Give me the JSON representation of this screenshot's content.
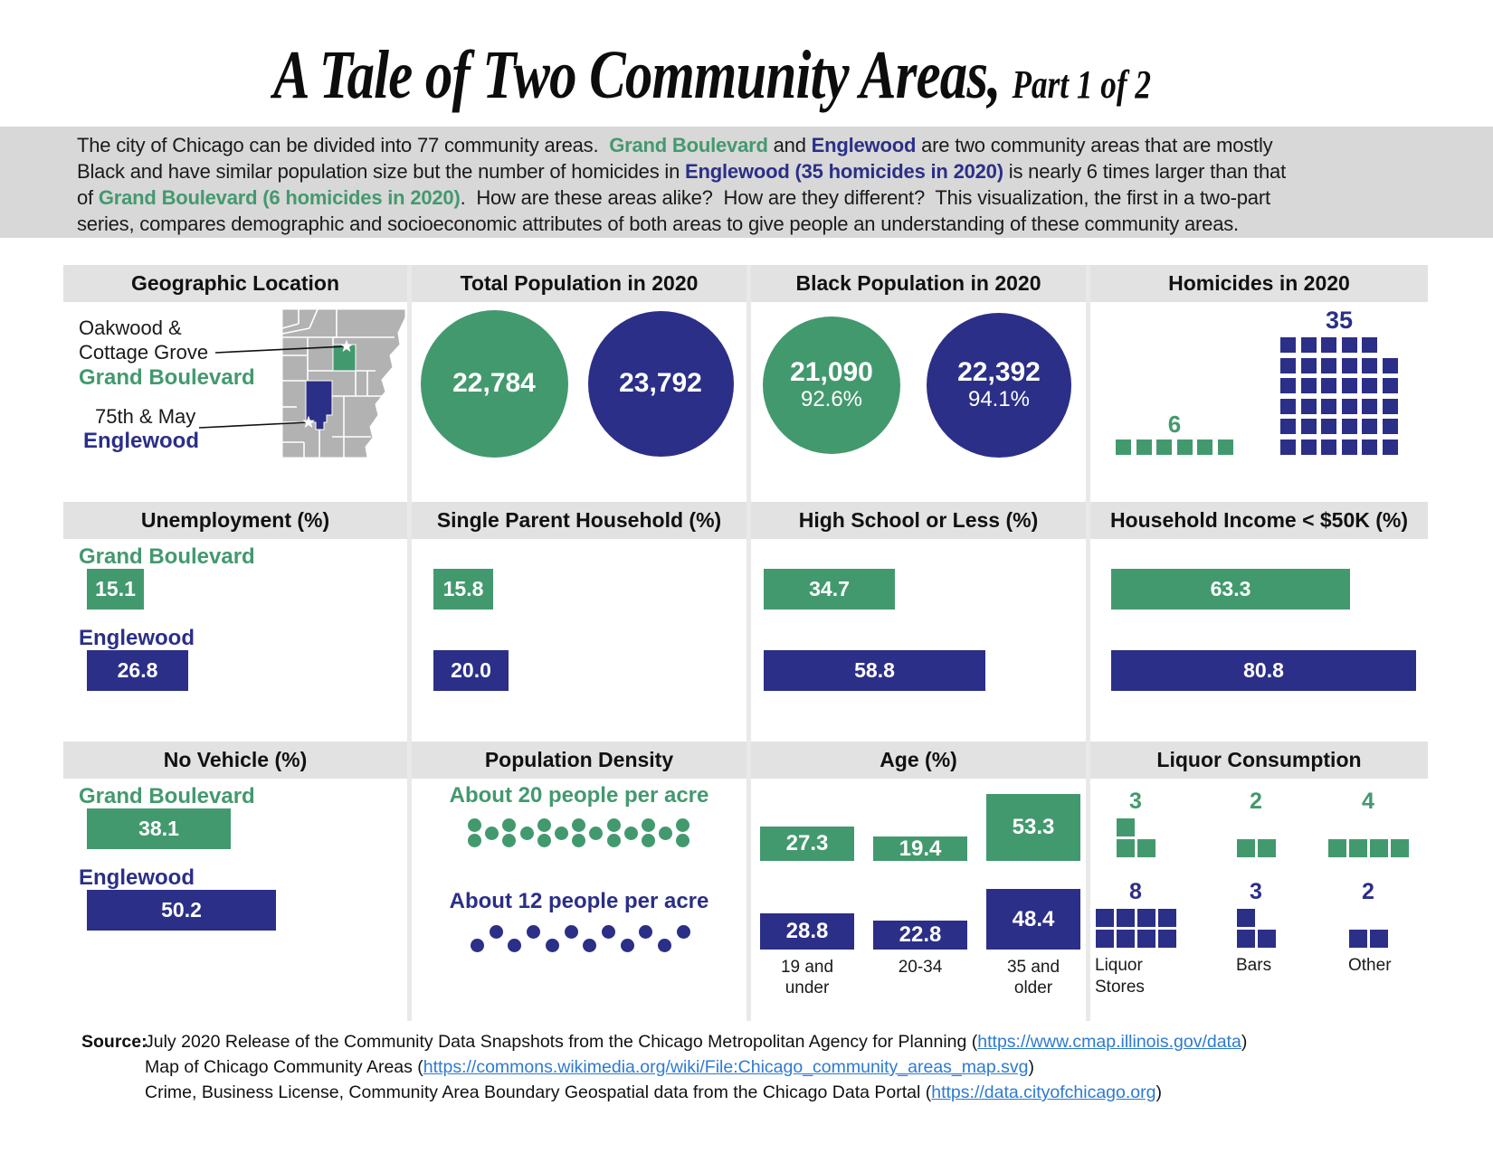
{
  "title": {
    "main": "A Tale of Two Community Areas,",
    "part": "Part 1 of 2"
  },
  "colors": {
    "green": "#43996E",
    "blue": "#2B2F87",
    "map_gray": "#B2B2B2",
    "strip_gray": "#E2E2E2",
    "divider_gray": "#E9E9E9",
    "band_gray": "#D8D8D8",
    "link_blue": "#2E7AD1"
  },
  "intro": {
    "lines": [
      [
        {
          "t": "The city of Chicago can be divided into 77 community areas.  ",
          "c": "n"
        },
        {
          "t": "Grand Boulevard",
          "c": "g"
        },
        {
          "t": " and ",
          "c": "n"
        },
        {
          "t": "Englewood",
          "c": "b"
        },
        {
          "t": " are two community areas that are mostly",
          "c": "n"
        }
      ],
      [
        {
          "t": "Black and have similar population size but the number of homicides in ",
          "c": "n"
        },
        {
          "t": "Englewood (35 homicides in 2020)",
          "c": "b"
        },
        {
          "t": " is nearly 6 times larger than that",
          "c": "n"
        }
      ],
      [
        {
          "t": "of ",
          "c": "n"
        },
        {
          "t": "Grand Boulevard (6 homicides in 2020)",
          "c": "g"
        },
        {
          "t": ".  How are these areas alike?  How are they different?  This visualization, the first in a two-part",
          "c": "n"
        }
      ],
      [
        {
          "t": "series, compares demographic and socioeconomic attributes of both areas to give people an understanding of these community areas.",
          "c": "n"
        }
      ]
    ]
  },
  "geo": {
    "landmark1a": "Oakwood &",
    "landmark1b": "Cottage Grove",
    "area1": "Grand Boulevard",
    "landmark2": "75th & May",
    "area2": "Englewood"
  },
  "chart_data": [
    {
      "type": "map",
      "title": "Geographic Location",
      "areas": [
        {
          "name": "Grand Boulevard",
          "landmark": "Oakwood & Cottage Grove",
          "color": "green"
        },
        {
          "name": "Englewood",
          "landmark": "75th & May",
          "color": "blue"
        }
      ]
    },
    {
      "type": "bubble",
      "title": "Total Population in 2020",
      "series": [
        {
          "name": "Grand Boulevard",
          "value": 22784,
          "label": "22,784"
        },
        {
          "name": "Englewood",
          "value": 23792,
          "label": "23,792"
        }
      ]
    },
    {
      "type": "bubble",
      "title": "Black Population in 2020",
      "series": [
        {
          "name": "Grand Boulevard",
          "value": 21090,
          "label": "21,090",
          "pct": "92.6%"
        },
        {
          "name": "Englewood",
          "value": 22392,
          "label": "22,392",
          "pct": "94.1%"
        }
      ]
    },
    {
      "type": "waffle",
      "title": "Homicides in 2020",
      "series": [
        {
          "name": "Grand Boulevard",
          "value": 6,
          "rows": [
            6
          ]
        },
        {
          "name": "Englewood",
          "value": 35,
          "rows": [
            5,
            6,
            6,
            6,
            6,
            6
          ]
        }
      ]
    },
    {
      "type": "bar",
      "title": "Unemployment (%)",
      "labeled": true,
      "xmax": 100,
      "series": [
        {
          "name": "Grand Boulevard",
          "value": 15.1
        },
        {
          "name": "Englewood",
          "value": 26.8
        }
      ]
    },
    {
      "type": "bar",
      "title": "Single Parent Household (%)",
      "labeled": false,
      "xmax": 100,
      "series": [
        {
          "name": "Grand Boulevard",
          "value": 15.8
        },
        {
          "name": "Englewood",
          "value": 20.0
        }
      ]
    },
    {
      "type": "bar",
      "title": "High School or Less (%)",
      "labeled": false,
      "xmax": 100,
      "series": [
        {
          "name": "Grand Boulevard",
          "value": 34.7
        },
        {
          "name": "Englewood",
          "value": 58.8
        }
      ]
    },
    {
      "type": "bar",
      "title": "Household Income < $50K (%)",
      "labeled": false,
      "xmax": 100,
      "series": [
        {
          "name": "Grand Boulevard",
          "value": 63.3
        },
        {
          "name": "Englewood",
          "value": 80.8
        }
      ]
    },
    {
      "type": "bar",
      "title": "No Vehicle (%)",
      "labeled": true,
      "xmax": 100,
      "series": [
        {
          "name": "Grand Boulevard",
          "value": 38.1
        },
        {
          "name": "Englewood",
          "value": 50.2
        }
      ]
    },
    {
      "type": "pictogram",
      "title": "Population Density",
      "rows": [
        {
          "name": "Grand Boulevard",
          "label": "About 20 people per acre",
          "value": 20
        },
        {
          "name": "Englewood",
          "label": "About 12 people per acre",
          "value": 12
        }
      ]
    },
    {
      "type": "column",
      "title": "Age (%)",
      "categories": [
        "19 and under",
        "20-34",
        "35 and older"
      ],
      "series": [
        {
          "name": "Grand Boulevard",
          "values": [
            27.3,
            19.4,
            53.3
          ]
        },
        {
          "name": "Englewood",
          "values": [
            28.8,
            22.8,
            48.4
          ]
        }
      ]
    },
    {
      "type": "waffle-group",
      "title": "Liquor Consumption",
      "categories": [
        "Liquor Stores",
        "Bars",
        "Other"
      ],
      "series": [
        {
          "name": "Grand Boulevard",
          "values": [
            3,
            2,
            4
          ],
          "rows": [
            [
              1,
              2
            ],
            [
              2
            ],
            [
              4
            ]
          ]
        },
        {
          "name": "Englewood",
          "values": [
            8,
            3,
            2
          ],
          "rows": [
            [
              4,
              4
            ],
            [
              1,
              2
            ],
            [
              2
            ]
          ]
        }
      ]
    }
  ],
  "source": {
    "prefix": "Source:",
    "line1_text": "July 2020 Release of the Community Data Snapshots from the Chicago Metropolitan Agency for Planning (",
    "line1_link": "https://www.cmap.illinois.gov/data",
    "line2_text": "Map of Chicago Community Areas (",
    "line2_link": "https://commons.wikimedia.org/wiki/File:Chicago_community_areas_map.svg",
    "line3_text": "Crime, Business License, Community Area Boundary Geospatial data from the Chicago Data Portal (",
    "line3_link": "https://data.cityofchicago.org",
    "close": ")"
  }
}
